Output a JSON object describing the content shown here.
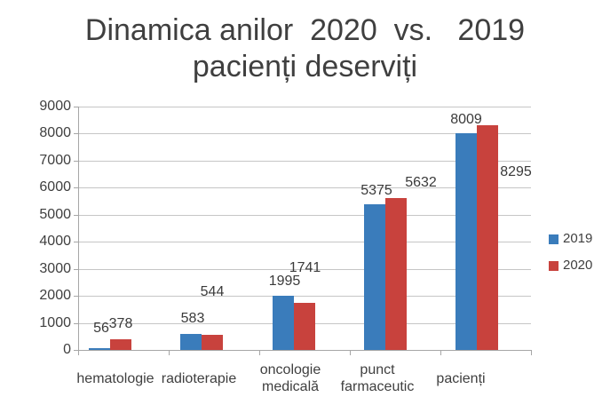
{
  "title": {
    "line1": "Dinamica anilor  2020  vs.   2019",
    "line2": "pacienți deserviți"
  },
  "chart_data": {
    "type": "bar",
    "title": "Dinamica anilor 2020 vs. 2019 pacienți deserviți",
    "categories": [
      "hematologie",
      "radioterapie",
      "oncologie medicală",
      "punct farmaceutic",
      "pacienți"
    ],
    "series": [
      {
        "name": "2019",
        "color": "#3A7CBB",
        "values": [
          56,
          583,
          1995,
          5375,
          8009
        ]
      },
      {
        "name": "2020",
        "color": "#C8423D",
        "values": [
          378,
          544,
          1741,
          5632,
          8295
        ]
      }
    ],
    "xlabel": "",
    "ylabel": "",
    "ylim": [
      0,
      9000
    ],
    "ytick_step": 1000,
    "grid": true,
    "data_labels": true,
    "legend_position": "right"
  },
  "colors": {
    "background": "#FFFFFF",
    "title_text": "#3F3F3F",
    "axis_line": "#A6A6A6",
    "gridline": "#C6C6C6",
    "label_text": "#3A3A3A"
  }
}
